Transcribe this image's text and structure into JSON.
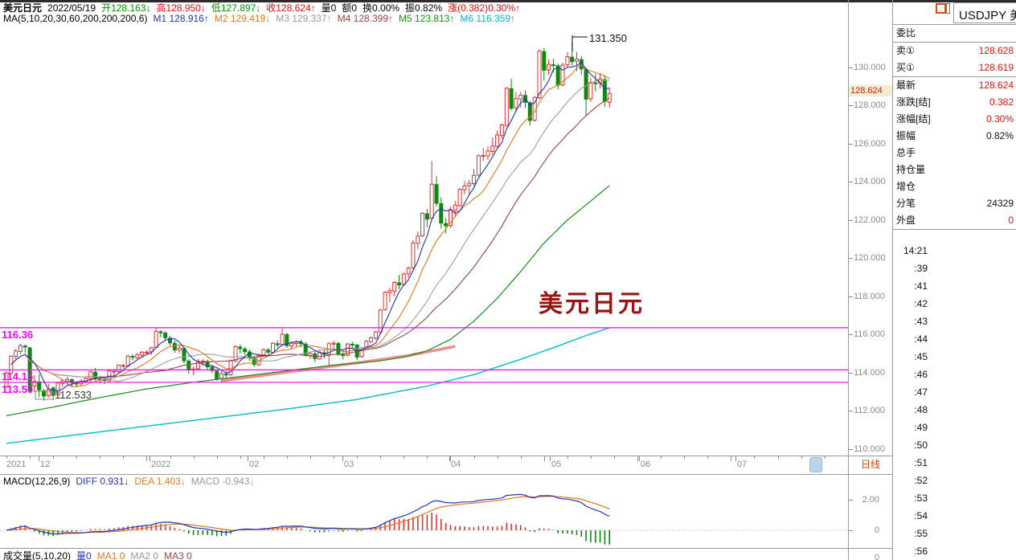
{
  "colors": {
    "up": "#e53030",
    "down": "#108810",
    "ma5": "#2233bb",
    "ma10": "#e07820",
    "ma20": "#a0a0a0",
    "ma30": "#994444",
    "ma60": "#1a8a1a",
    "ma200": "#00bbcc",
    "pink": "#ef8e8e",
    "magenta": "#ff00ff",
    "red_value": "#e81010",
    "axis_text": "#8a8a8a"
  },
  "header_line": [
    {
      "t": "美元日元",
      "c": "#000000",
      "b": true
    },
    {
      "t": "2022/05/19",
      "c": "#000000"
    },
    {
      "t": "开128.163↓",
      "c": "#009900"
    },
    {
      "t": "高128.950↓",
      "c": "#e81010"
    },
    {
      "t": "低127.897↓",
      "c": "#009900"
    },
    {
      "t": "收128.624↑",
      "c": "#e81010"
    },
    {
      "t": "量0",
      "c": "#000000"
    },
    {
      "t": "额0",
      "c": "#000000"
    },
    {
      "t": "换0.00%",
      "c": "#000000"
    },
    {
      "t": "振0.82%",
      "c": "#000000"
    },
    {
      "t": "涨(0.382)0.30%↑",
      "c": "#e81010"
    }
  ],
  "ma_line": [
    {
      "t": "MA(5,10,20,30,60,200,200,200,6)",
      "c": "#000000"
    },
    {
      "t": "M1 128.916↑",
      "c": "#2233bb"
    },
    {
      "t": "M2 129.419↓",
      "c": "#e07820"
    },
    {
      "t": "M3 129.337↑",
      "c": "#999999"
    },
    {
      "t": "M4 128.399↑",
      "c": "#994444"
    },
    {
      "t": "M5 123.813↑",
      "c": "#119911"
    },
    {
      "t": "M6 116.359↑",
      "c": "#00bbcc"
    }
  ],
  "macd_line": [
    {
      "t": "MACD(12,26,9)",
      "c": "#000000"
    },
    {
      "t": "DIFF 0.931↓",
      "c": "#2233bb"
    },
    {
      "t": "DEA 1.403↓",
      "c": "#e07820"
    },
    {
      "t": "MACD -0.943↓",
      "c": "#999999"
    }
  ],
  "vol_line": [
    {
      "t": "成交量(5,10,20)",
      "c": "#000000"
    },
    {
      "t": "量0",
      "c": "#2233bb"
    },
    {
      "t": "MA1 0",
      "c": "#e07820"
    },
    {
      "t": "MA2 0",
      "c": "#999999"
    },
    {
      "t": "MA3 0",
      "c": "#994444"
    }
  ],
  "panel": {
    "title": "USDJPY 美",
    "rows": [
      {
        "label": "委比",
        "value": "",
        "vc": "black",
        "sep": true
      },
      {
        "label": "卖①",
        "value": "128.628",
        "vc": "red",
        "sep": false
      },
      {
        "label": "买①",
        "value": "128.619",
        "vc": "red",
        "sep": true
      },
      {
        "label": "最新",
        "value": "128.624",
        "vc": "red",
        "sep": false
      },
      {
        "label": "涨跌[结]",
        "value": "0.382",
        "vc": "red",
        "sep": false
      },
      {
        "label": "涨幅[结]",
        "value": "0.30%",
        "vc": "red",
        "sep": false
      },
      {
        "label": "振幅",
        "value": "0.82%",
        "vc": "black",
        "sep": false
      },
      {
        "label": "总手",
        "value": "",
        "vc": "black",
        "sep": false
      },
      {
        "label": "持仓量",
        "value": "",
        "vc": "black",
        "sep": false
      },
      {
        "label": "增仓",
        "value": "",
        "vc": "black",
        "sep": false
      },
      {
        "label": "分笔",
        "value": "24329",
        "vc": "black",
        "sep": false
      },
      {
        "label": "外盘",
        "value": "0",
        "vc": "red",
        "sep": true
      }
    ],
    "times": [
      "14:21",
      ":39",
      ":41",
      ":42",
      ":43",
      ":44",
      ":45",
      ":46",
      ":47",
      ":48",
      ":49",
      ":50",
      ":51",
      ":52",
      ":53",
      ":54",
      ":55",
      ":56"
    ]
  },
  "period_label": "日线",
  "price_axis": {
    "current": "128.624"
  },
  "chart_data": {
    "type": "candlestick",
    "symbol": "USDJPY",
    "title": "美元日元",
    "date": "2022/05/19",
    "last": {
      "open": 128.163,
      "high": 128.95,
      "low": 127.897,
      "close": 128.624,
      "change": 0.382,
      "change_pct": "0.30%",
      "amplitude": "0.82%"
    },
    "ylim": [
      109.66,
      132.27
    ],
    "y_axis_labels": [
      "130.000",
      "128.000",
      "126.000",
      "124.000",
      "122.000",
      "120.000",
      "118.000",
      "116.000",
      "114.000",
      "112.000",
      "110.000"
    ],
    "x_axis_labels": [
      "2021",
      "12",
      "2022",
      "02",
      "03",
      "04",
      "05",
      "06",
      "07"
    ],
    "annotations": {
      "high": "131.350",
      "low": "112.533",
      "levels": [
        116.36,
        114.15,
        113.5
      ],
      "level_texts": [
        "116.36",
        "114.15",
        "113.50"
      ]
    },
    "watermark": "美元日元",
    "ma_values": {
      "M1": 128.916,
      "M2": 129.419,
      "M3": 129.337,
      "M4": 128.399,
      "M5": 123.813,
      "M6": 116.359
    },
    "macd": {
      "params": "12,26,9",
      "diff": 0.931,
      "dea": 1.403,
      "macd": -0.943,
      "axis_labels": [
        "2.00",
        "0"
      ],
      "vol_axis_label": "0"
    },
    "candles": [
      [
        113.28,
        114.07,
        113.21,
        113.99
      ],
      [
        113.97,
        114.92,
        113.95,
        114.87
      ],
      [
        114.85,
        115.23,
        114.7,
        115.14
      ],
      [
        115.12,
        115.52,
        114.95,
        115.43
      ],
      [
        115.4,
        115.48,
        115.04,
        115.35
      ],
      [
        115.3,
        115.37,
        113.0,
        113.05
      ],
      [
        113.3,
        113.88,
        112.99,
        113.55
      ],
      [
        113.52,
        113.94,
        112.72,
        113.1
      ],
      [
        113.05,
        113.15,
        112.53,
        112.78
      ],
      [
        112.8,
        113.41,
        112.7,
        113.13
      ],
      [
        113.2,
        113.29,
        112.56,
        112.81
      ],
      [
        112.85,
        113.49,
        112.77,
        113.46
      ],
      [
        113.44,
        113.69,
        113.27,
        113.58
      ],
      [
        113.55,
        113.79,
        113.36,
        113.65
      ],
      [
        113.63,
        113.7,
        113.24,
        113.47
      ],
      [
        113.45,
        113.56,
        113.22,
        113.44
      ],
      [
        113.42,
        113.68,
        113.3,
        113.55
      ],
      [
        113.53,
        113.78,
        113.46,
        113.71
      ],
      [
        113.69,
        114.1,
        113.53,
        114.05
      ],
      [
        114.03,
        114.25,
        113.6,
        113.68
      ],
      [
        113.66,
        113.84,
        113.45,
        113.66
      ],
      [
        113.64,
        113.78,
        113.41,
        113.6
      ],
      [
        113.58,
        114.15,
        113.52,
        114.1
      ],
      [
        114.08,
        114.21,
        113.85,
        114.08
      ],
      [
        114.06,
        114.43,
        113.98,
        114.4
      ],
      [
        114.38,
        114.47,
        114.21,
        114.38
      ],
      [
        114.36,
        114.94,
        114.3,
        114.87
      ],
      [
        114.85,
        114.96,
        114.65,
        114.81
      ],
      [
        114.79,
        115.03,
        114.71,
        114.94
      ],
      [
        114.92,
        115.12,
        114.8,
        115.08
      ],
      [
        115.06,
        115.17,
        114.93,
        115.08
      ],
      [
        115.1,
        115.37,
        114.94,
        115.31
      ],
      [
        115.33,
        116.35,
        115.28,
        116.17
      ],
      [
        116.15,
        116.23,
        115.85,
        116.1
      ],
      [
        116.08,
        116.18,
        115.7,
        115.83
      ],
      [
        115.81,
        115.92,
        115.42,
        115.56
      ],
      [
        115.54,
        115.68,
        115.05,
        115.2
      ],
      [
        115.18,
        115.45,
        115.03,
        115.29
      ],
      [
        115.27,
        115.35,
        114.48,
        114.63
      ],
      [
        114.61,
        114.72,
        113.95,
        114.18
      ],
      [
        114.16,
        114.32,
        113.88,
        114.19
      ],
      [
        114.21,
        114.72,
        114.14,
        114.6
      ],
      [
        114.58,
        114.71,
        114.36,
        114.61
      ],
      [
        114.59,
        114.68,
        114.15,
        114.31
      ],
      [
        114.29,
        114.44,
        113.98,
        114.11
      ],
      [
        114.09,
        114.18,
        113.59,
        113.68
      ],
      [
        113.7,
        114.08,
        113.47,
        113.95
      ],
      [
        113.93,
        114.1,
        113.65,
        113.88
      ],
      [
        113.9,
        114.7,
        113.82,
        114.64
      ],
      [
        114.62,
        115.45,
        114.55,
        115.37
      ],
      [
        115.35,
        115.48,
        115.0,
        115.26
      ],
      [
        115.24,
        115.36,
        114.94,
        115.11
      ],
      [
        115.09,
        115.22,
        114.62,
        114.77
      ],
      [
        114.75,
        114.88,
        114.3,
        114.44
      ],
      [
        114.42,
        115.0,
        114.35,
        114.96
      ],
      [
        114.94,
        115.27,
        114.85,
        115.21
      ],
      [
        115.19,
        115.3,
        114.91,
        115.08
      ],
      [
        115.06,
        115.6,
        114.99,
        115.54
      ],
      [
        115.52,
        115.69,
        115.31,
        115.46
      ],
      [
        115.48,
        116.34,
        115.4,
        116.02
      ],
      [
        116.0,
        116.1,
        115.3,
        115.42
      ],
      [
        115.4,
        115.63,
        115.25,
        115.55
      ],
      [
        115.53,
        115.7,
        115.36,
        115.62
      ],
      [
        115.6,
        115.73,
        115.33,
        115.52
      ],
      [
        115.5,
        115.62,
        114.85,
        114.92
      ],
      [
        114.9,
        115.1,
        114.72,
        115.01
      ],
      [
        114.99,
        115.09,
        114.55,
        114.74
      ],
      [
        114.72,
        115.15,
        114.68,
        115.07
      ],
      [
        115.05,
        115.2,
        114.75,
        114.98
      ],
      [
        114.96,
        115.6,
        114.4,
        115.52
      ],
      [
        115.5,
        115.68,
        115.27,
        115.55
      ],
      [
        115.53,
        115.63,
        114.88,
        114.96
      ],
      [
        114.94,
        115.09,
        114.7,
        114.9
      ],
      [
        114.92,
        115.56,
        114.85,
        115.51
      ],
      [
        115.49,
        115.62,
        115.29,
        115.47
      ],
      [
        115.45,
        115.52,
        114.65,
        114.82
      ],
      [
        114.84,
        115.37,
        114.78,
        115.3
      ],
      [
        115.28,
        115.72,
        115.2,
        115.65
      ],
      [
        115.63,
        115.9,
        115.55,
        115.83
      ],
      [
        115.81,
        116.2,
        115.73,
        116.14
      ],
      [
        116.12,
        117.36,
        116.05,
        117.29
      ],
      [
        117.31,
        118.28,
        117.25,
        118.21
      ],
      [
        118.19,
        118.45,
        117.7,
        118.3
      ],
      [
        118.28,
        118.8,
        118.01,
        118.73
      ],
      [
        118.71,
        119.12,
        118.38,
        118.61
      ],
      [
        118.63,
        119.25,
        118.55,
        119.17
      ],
      [
        119.19,
        119.56,
        118.98,
        119.48
      ],
      [
        119.5,
        120.95,
        119.42,
        120.8
      ],
      [
        120.78,
        121.4,
        120.49,
        121.16
      ],
      [
        121.18,
        122.41,
        121.1,
        122.35
      ],
      [
        122.33,
        122.58,
        121.63,
        122.05
      ],
      [
        122.1,
        125.1,
        122.03,
        123.88
      ],
      [
        123.86,
        124.3,
        122.7,
        122.88
      ],
      [
        122.86,
        123.2,
        121.55,
        121.84
      ],
      [
        121.82,
        122.1,
        121.3,
        121.7
      ],
      [
        121.72,
        122.7,
        121.6,
        122.52
      ],
      [
        122.5,
        123.0,
        122.15,
        122.78
      ],
      [
        122.76,
        123.67,
        122.68,
        123.61
      ],
      [
        123.59,
        124.05,
        123.35,
        123.79
      ],
      [
        123.81,
        124.1,
        123.3,
        123.93
      ],
      [
        123.91,
        124.67,
        123.8,
        124.34
      ],
      [
        124.36,
        125.44,
        124.28,
        125.37
      ],
      [
        125.35,
        125.77,
        125.1,
        125.38
      ],
      [
        125.36,
        125.86,
        125.15,
        125.62
      ],
      [
        125.6,
        126.32,
        125.42,
        125.88
      ],
      [
        125.86,
        126.69,
        125.8,
        126.46
      ],
      [
        126.44,
        127.05,
        126.25,
        126.98
      ],
      [
        126.96,
        128.97,
        126.9,
        128.91
      ],
      [
        128.89,
        129.4,
        127.75,
        127.86
      ],
      [
        127.88,
        128.7,
        127.65,
        128.37
      ],
      [
        128.35,
        128.72,
        127.9,
        128.55
      ],
      [
        128.53,
        128.8,
        127.88,
        128.17
      ],
      [
        128.15,
        128.25,
        126.95,
        127.22
      ],
      [
        127.24,
        128.5,
        127.15,
        128.43
      ],
      [
        128.41,
        130.95,
        128.33,
        130.85
      ],
      [
        130.83,
        131.02,
        129.3,
        129.85
      ],
      [
        129.87,
        130.42,
        129.6,
        130.16
      ],
      [
        130.14,
        130.45,
        129.75,
        130.11
      ],
      [
        130.09,
        130.2,
        128.85,
        129.07
      ],
      [
        129.09,
        130.25,
        129.0,
        130.12
      ],
      [
        130.14,
        130.8,
        130.0,
        130.56
      ],
      [
        130.54,
        131.35,
        130.1,
        130.3
      ],
      [
        130.32,
        130.81,
        129.8,
        130.43
      ],
      [
        130.41,
        130.6,
        129.6,
        129.92
      ],
      [
        129.9,
        130.0,
        127.5,
        128.34
      ],
      [
        128.36,
        129.45,
        128.2,
        129.21
      ],
      [
        129.19,
        129.65,
        128.75,
        129.15
      ],
      [
        129.17,
        129.7,
        128.9,
        129.38
      ],
      [
        129.36,
        129.55,
        127.95,
        128.23
      ],
      [
        128.163,
        128.95,
        127.897,
        128.624
      ]
    ],
    "ma60_anchors": [
      [
        0,
        111.75
      ],
      [
        10,
        112.2
      ],
      [
        20,
        112.7
      ],
      [
        30,
        113.15
      ],
      [
        40,
        113.5
      ],
      [
        50,
        113.8
      ],
      [
        60,
        114.1
      ],
      [
        70,
        114.4
      ],
      [
        80,
        114.62
      ],
      [
        85,
        114.82
      ],
      [
        90,
        115.15
      ],
      [
        95,
        115.75
      ],
      [
        100,
        116.7
      ],
      [
        105,
        117.9
      ],
      [
        110,
        119.3
      ],
      [
        115,
        120.8
      ],
      [
        120,
        122.0
      ],
      [
        125,
        123.0
      ],
      [
        129,
        123.813
      ]
    ],
    "ma200_anchors": [
      [
        0,
        110.3
      ],
      [
        20,
        110.9
      ],
      [
        40,
        111.5
      ],
      [
        60,
        112.1
      ],
      [
        75,
        112.6
      ],
      [
        90,
        113.3
      ],
      [
        100,
        113.9
      ],
      [
        110,
        114.7
      ],
      [
        118,
        115.4
      ],
      [
        124,
        115.95
      ],
      [
        129,
        116.359
      ]
    ],
    "pink_anchors": [
      [
        46,
        113.58
      ],
      [
        56,
        113.9
      ],
      [
        66,
        114.22
      ],
      [
        76,
        114.55
      ],
      [
        86,
        114.9
      ],
      [
        96,
        115.38
      ]
    ]
  }
}
